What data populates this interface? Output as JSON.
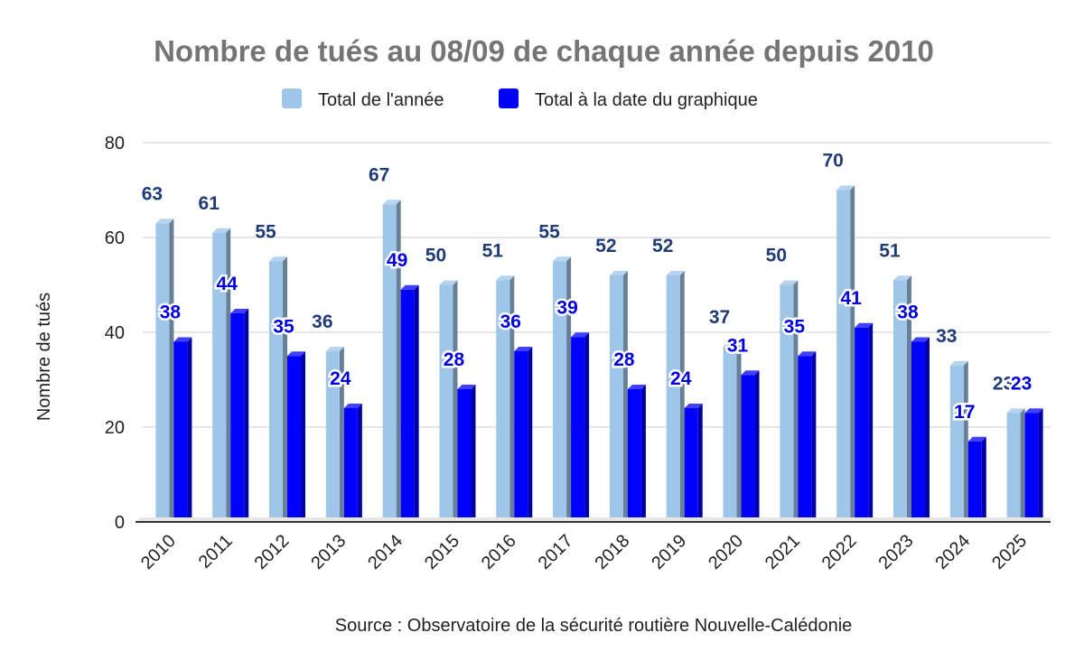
{
  "chart_data": {
    "type": "bar",
    "title": "Nombre de tués au 08/09 de chaque année depuis 2010",
    "ylabel": "Nombre de tués",
    "xlabel": "",
    "source": "Source : Observatoire de la sécurité routière Nouvelle-Calédonie",
    "ylim": [
      0,
      80
    ],
    "yticks": [
      "0",
      "20",
      "40",
      "60",
      "80"
    ],
    "ytick_values": [
      0,
      20,
      40,
      60,
      80
    ],
    "grid": true,
    "legend_position": "top",
    "bar_style": "3d",
    "categories": [
      "2010",
      "2011",
      "2012",
      "2013",
      "2014",
      "2015",
      "2016",
      "2017",
      "2018",
      "2019",
      "2020",
      "2021",
      "2022",
      "2023",
      "2024",
      "2025"
    ],
    "series": [
      {
        "name": "Total de l'année",
        "color": "#9fc5e8",
        "values": [
          63,
          61,
          55,
          36,
          67,
          50,
          51,
          55,
          52,
          52,
          37,
          50,
          70,
          51,
          33,
          23
        ],
        "labels": [
          "63",
          "61",
          "55",
          "36",
          "67",
          "50",
          "51",
          "55",
          "52",
          "52",
          "37",
          "50",
          "70",
          "51",
          "33",
          "23"
        ]
      },
      {
        "name": "Total à la date du graphique",
        "color": "#0000ff",
        "values": [
          38,
          44,
          35,
          24,
          49,
          28,
          36,
          39,
          28,
          24,
          31,
          35,
          41,
          38,
          17,
          23
        ],
        "labels": [
          "38",
          "44",
          "35",
          "24",
          "49",
          "28",
          "36",
          "39",
          "28",
          "24",
          "31",
          "35",
          "41",
          "38",
          "17",
          "23"
        ]
      }
    ]
  }
}
